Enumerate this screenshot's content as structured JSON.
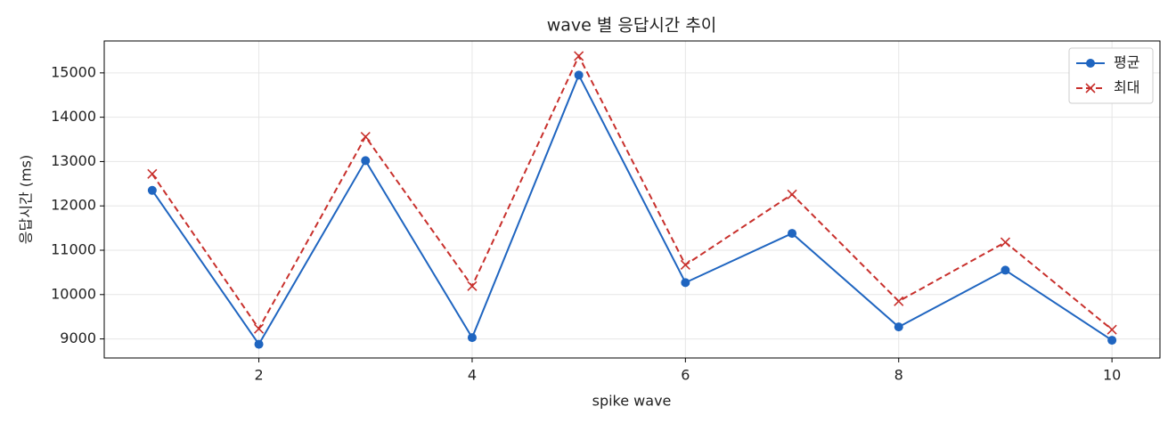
{
  "chart_data": {
    "type": "line",
    "title": "wave 별 응답시간 추이",
    "xlabel": "spike wave",
    "ylabel": "응답시간 (ms)",
    "x": [
      1,
      2,
      3,
      4,
      5,
      6,
      7,
      8,
      9,
      10
    ],
    "series": [
      {
        "name": "평균",
        "color": "#1f65c0",
        "marker": "o",
        "dash": "solid",
        "values": [
          12350,
          8880,
          13020,
          9030,
          14950,
          10270,
          11380,
          9270,
          10550,
          8970
        ]
      },
      {
        "name": "최대",
        "color": "#c8302c",
        "marker": "x",
        "dash": "dashed",
        "values": [
          12720,
          9230,
          13560,
          10190,
          15380,
          10670,
          12260,
          9850,
          11180,
          9210
        ]
      }
    ],
    "xlim": [
      0.55,
      10.45
    ],
    "xticks": [
      2,
      4,
      6,
      8,
      10
    ],
    "ylim": [
      8570,
      15720
    ],
    "yticks": [
      9000,
      10000,
      11000,
      12000,
      13000,
      14000,
      15000
    ],
    "grid": true,
    "legend": "upper right"
  }
}
